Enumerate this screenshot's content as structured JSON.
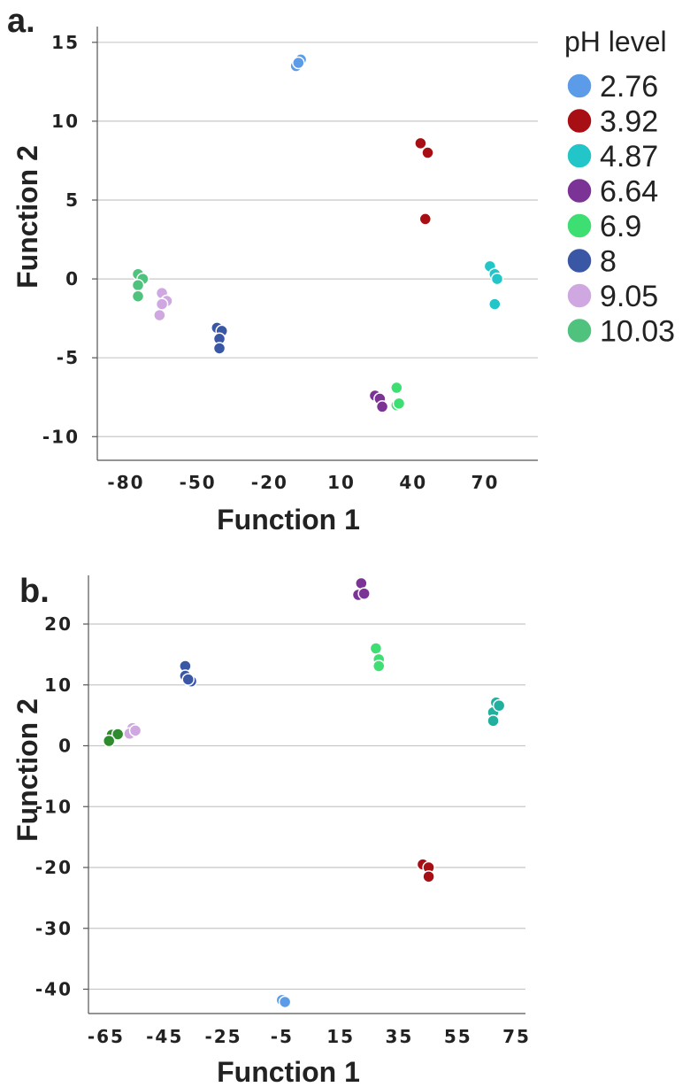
{
  "legend": {
    "title": "pH level",
    "entries": [
      {
        "label": "2.76",
        "color": "#5b9be8"
      },
      {
        "label": "3.92",
        "color": "#a80f14"
      },
      {
        "label": "4.87",
        "color": "#22c6c8"
      },
      {
        "label": "6.64",
        "color": "#7b3495"
      },
      {
        "label": "6.9",
        "color": "#3ddf73"
      },
      {
        "label": "8",
        "color": "#3a57a6"
      },
      {
        "label": "9.05",
        "color": "#cfa8e2"
      },
      {
        "label": "10.03",
        "color": "#4fc27e"
      }
    ]
  },
  "chart_data": [
    {
      "panel_label": "a.",
      "type": "scatter",
      "xlabel": "Function 1",
      "ylabel": "Function 2",
      "xlim": [
        -92,
        92
      ],
      "ylim": [
        -11.5,
        16
      ],
      "xticks": [
        -80,
        -50,
        -20,
        10,
        40,
        70
      ],
      "yticks": [
        -10,
        -5,
        0,
        5,
        10,
        15
      ],
      "grid": "horizontal",
      "legend": "right",
      "series": [
        {
          "name": "2.76",
          "color": "#5b9be8",
          "points": [
            [
              -9,
              13.5
            ],
            [
              -7,
              13.9
            ],
            [
              -8,
              13.7
            ]
          ]
        },
        {
          "name": "3.92",
          "color": "#a80f14",
          "points": [
            [
              43,
              8.6
            ],
            [
              46,
              8.0
            ],
            [
              45,
              3.8
            ]
          ]
        },
        {
          "name": "4.87",
          "color": "#22c6c8",
          "points": [
            [
              72,
              0.8
            ],
            [
              74,
              0.3
            ],
            [
              75,
              0.0
            ],
            [
              74,
              -1.6
            ]
          ]
        },
        {
          "name": "6.64",
          "color": "#7b3495",
          "points": [
            [
              24,
              -7.4
            ],
            [
              26,
              -7.6
            ],
            [
              27,
              -8.1
            ]
          ]
        },
        {
          "name": "6.9",
          "color": "#3ddf73",
          "points": [
            [
              33,
              -6.9
            ],
            [
              33,
              -8.0
            ],
            [
              34,
              -7.9
            ]
          ]
        },
        {
          "name": "8",
          "color": "#3a57a6",
          "points": [
            [
              -42,
              -3.1
            ],
            [
              -40,
              -3.3
            ],
            [
              -41,
              -3.8
            ],
            [
              -41,
              -4.4
            ]
          ]
        },
        {
          "name": "9.05",
          "color": "#cfa8e2",
          "points": [
            [
              -65,
              -0.9
            ],
            [
              -63,
              -1.4
            ],
            [
              -65,
              -1.6
            ],
            [
              -66,
              -2.3
            ]
          ]
        },
        {
          "name": "10.03",
          "color": "#4fc27e",
          "points": [
            [
              -75,
              0.3
            ],
            [
              -73,
              0.0
            ],
            [
              -75,
              -0.4
            ],
            [
              -75,
              -1.1
            ]
          ]
        }
      ]
    },
    {
      "panel_label": "b.",
      "type": "scatter",
      "xlabel": "Function 1",
      "ylabel": "Function 2",
      "xlim": [
        -71,
        78
      ],
      "ylim": [
        -44,
        28
      ],
      "xticks": [
        -65,
        -45,
        -25,
        -5,
        15,
        35,
        55,
        75
      ],
      "yticks": [
        -40,
        -30,
        -20,
        -10,
        0,
        10,
        20
      ],
      "grid": "horizontal",
      "series": [
        {
          "name": "2.76",
          "color": "#5b9be8",
          "points": [
            [
              -5,
              -41.8
            ],
            [
              -4,
              -42.1
            ]
          ]
        },
        {
          "name": "3.92",
          "color": "#a80f14",
          "points": [
            [
              43,
              -19.5
            ],
            [
              45,
              -20.0
            ],
            [
              45,
              -21.5
            ]
          ]
        },
        {
          "name": "4.87",
          "color": "#22b09e",
          "points": [
            [
              68,
              7.1
            ],
            [
              67,
              5.5
            ],
            [
              67,
              4.1
            ],
            [
              69,
              6.6
            ]
          ]
        },
        {
          "name": "6.64",
          "color": "#7b3495",
          "points": [
            [
              22,
              26.7
            ],
            [
              21,
              24.8
            ],
            [
              23,
              25.0
            ]
          ]
        },
        {
          "name": "6.9",
          "color": "#3ddf73",
          "points": [
            [
              27,
              16.0
            ],
            [
              28,
              14.2
            ],
            [
              28,
              13.1
            ]
          ]
        },
        {
          "name": "8",
          "color": "#3a57a6",
          "points": [
            [
              -38,
              13.1
            ],
            [
              -38,
              11.5
            ],
            [
              -36,
              10.6
            ],
            [
              -37,
              10.9
            ]
          ]
        },
        {
          "name": "9.05",
          "color": "#cfa8e2",
          "points": [
            [
              -56,
              2.9
            ],
            [
              -57,
              2.0
            ],
            [
              -55,
              2.5
            ]
          ]
        },
        {
          "name": "10.03",
          "color": "#2e8b2e",
          "points": [
            [
              -63,
              1.8
            ],
            [
              -61,
              1.9
            ],
            [
              -64,
              0.8
            ]
          ]
        }
      ]
    }
  ]
}
